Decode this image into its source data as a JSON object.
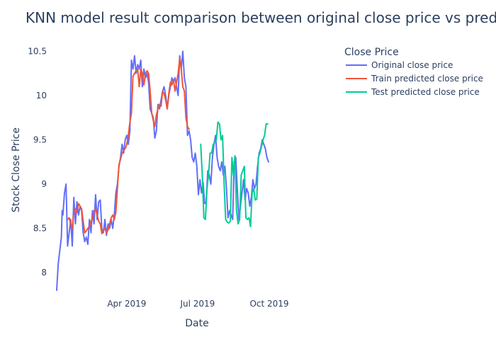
{
  "chart_data": {
    "type": "line",
    "title": "KNN model result comparison between original close price vs predicted close price",
    "xlabel": "Date",
    "ylabel": "Stock Close Price",
    "x_range": [
      "2019-01-01",
      "2019-12-31"
    ],
    "x_ticks": [
      {
        "date": "2019-04-01",
        "label": "Apr 2019"
      },
      {
        "date": "2019-07-01",
        "label": "Jul 2019"
      },
      {
        "date": "2019-10-01",
        "label": "Oct 2019"
      }
    ],
    "ylim": [
      7.8,
      10.6
    ],
    "y_ticks": [
      {
        "value": 8,
        "label": "8"
      },
      {
        "value": 8.5,
        "label": "8.5"
      },
      {
        "value": 9,
        "label": "9"
      },
      {
        "value": 9.5,
        "label": "9.5"
      },
      {
        "value": 10,
        "label": "10"
      },
      {
        "value": 10.5,
        "label": "10.5"
      }
    ],
    "grid": false,
    "legend": {
      "title": "Close Price",
      "placement": "top-right"
    },
    "series": [
      {
        "name": "Original close price",
        "color": "#636efa",
        "points": [
          [
            "2019-01-01",
            7.8
          ],
          [
            "2019-01-03",
            8.1
          ],
          [
            "2019-01-05",
            8.25
          ],
          [
            "2019-01-07",
            8.4
          ],
          [
            "2019-01-08",
            8.7
          ],
          [
            "2019-01-09",
            8.65
          ],
          [
            "2019-01-11",
            8.9
          ],
          [
            "2019-01-13",
            9.0
          ],
          [
            "2019-01-15",
            8.3
          ],
          [
            "2019-01-17",
            8.45
          ],
          [
            "2019-01-19",
            8.6
          ],
          [
            "2019-01-21",
            8.3
          ],
          [
            "2019-01-23",
            8.85
          ],
          [
            "2019-01-25",
            8.55
          ],
          [
            "2019-01-27",
            8.8
          ],
          [
            "2019-01-29",
            8.65
          ],
          [
            "2019-01-31",
            8.75
          ],
          [
            "2019-02-02",
            8.7
          ],
          [
            "2019-02-04",
            8.45
          ],
          [
            "2019-02-06",
            8.35
          ],
          [
            "2019-02-08",
            8.4
          ],
          [
            "2019-02-10",
            8.32
          ],
          [
            "2019-02-12",
            8.6
          ],
          [
            "2019-02-14",
            8.45
          ],
          [
            "2019-02-16",
            8.7
          ],
          [
            "2019-02-18",
            8.55
          ],
          [
            "2019-02-20",
            8.88
          ],
          [
            "2019-02-22",
            8.6
          ],
          [
            "2019-02-24",
            8.8
          ],
          [
            "2019-02-26",
            8.82
          ],
          [
            "2019-02-28",
            8.5
          ],
          [
            "2019-03-02",
            8.45
          ],
          [
            "2019-03-04",
            8.6
          ],
          [
            "2019-03-06",
            8.42
          ],
          [
            "2019-03-08",
            8.55
          ],
          [
            "2019-03-10",
            8.5
          ],
          [
            "2019-03-12",
            8.6
          ],
          [
            "2019-03-14",
            8.5
          ],
          [
            "2019-03-16",
            8.65
          ],
          [
            "2019-03-18",
            8.9
          ],
          [
            "2019-03-20",
            9.0
          ],
          [
            "2019-03-22",
            9.2
          ],
          [
            "2019-03-24",
            9.3
          ],
          [
            "2019-03-26",
            9.45
          ],
          [
            "2019-03-28",
            9.35
          ],
          [
            "2019-03-30",
            9.5
          ],
          [
            "2019-04-01",
            9.55
          ],
          [
            "2019-04-03",
            9.45
          ],
          [
            "2019-04-05",
            9.6
          ],
          [
            "2019-04-07",
            10.4
          ],
          [
            "2019-04-09",
            10.3
          ],
          [
            "2019-04-11",
            10.45
          ],
          [
            "2019-04-13",
            10.25
          ],
          [
            "2019-04-15",
            10.35
          ],
          [
            "2019-04-17",
            10.3
          ],
          [
            "2019-04-19",
            10.4
          ],
          [
            "2019-04-21",
            10.1
          ],
          [
            "2019-04-23",
            10.3
          ],
          [
            "2019-04-25",
            10.2
          ],
          [
            "2019-04-27",
            10.25
          ],
          [
            "2019-04-29",
            10.15
          ],
          [
            "2019-05-01",
            9.85
          ],
          [
            "2019-05-03",
            9.8
          ],
          [
            "2019-05-05",
            9.75
          ],
          [
            "2019-05-07",
            9.52
          ],
          [
            "2019-05-09",
            9.6
          ],
          [
            "2019-05-11",
            9.9
          ],
          [
            "2019-05-13",
            9.85
          ],
          [
            "2019-05-15",
            9.95
          ],
          [
            "2019-05-17",
            10.05
          ],
          [
            "2019-05-19",
            10.1
          ],
          [
            "2019-05-21",
            10.0
          ],
          [
            "2019-05-23",
            9.85
          ],
          [
            "2019-05-25",
            10.0
          ],
          [
            "2019-05-27",
            10.1
          ],
          [
            "2019-05-29",
            10.2
          ],
          [
            "2019-05-31",
            10.15
          ],
          [
            "2019-06-02",
            10.2
          ],
          [
            "2019-06-04",
            10.1
          ],
          [
            "2019-06-06",
            10.0
          ],
          [
            "2019-06-08",
            10.45
          ],
          [
            "2019-06-10",
            10.3
          ],
          [
            "2019-06-12",
            10.5
          ],
          [
            "2019-06-14",
            10.2
          ],
          [
            "2019-06-16",
            10.1
          ],
          [
            "2019-06-18",
            9.55
          ],
          [
            "2019-06-20",
            9.6
          ],
          [
            "2019-06-22",
            9.5
          ],
          [
            "2019-06-24",
            9.3
          ],
          [
            "2019-06-26",
            9.25
          ],
          [
            "2019-06-28",
            9.35
          ],
          [
            "2019-06-30",
            9.2
          ],
          [
            "2019-07-02",
            8.88
          ],
          [
            "2019-07-04",
            9.05
          ],
          [
            "2019-07-06",
            8.9
          ],
          [
            "2019-07-08",
            9.02
          ],
          [
            "2019-07-10",
            8.78
          ],
          [
            "2019-07-12",
            8.8
          ],
          [
            "2019-07-14",
            9.15
          ],
          [
            "2019-07-16",
            9.1
          ],
          [
            "2019-07-18",
            9.0
          ],
          [
            "2019-07-20",
            9.3
          ],
          [
            "2019-07-22",
            9.45
          ],
          [
            "2019-07-24",
            9.55
          ],
          [
            "2019-07-26",
            9.3
          ],
          [
            "2019-07-28",
            9.2
          ],
          [
            "2019-07-30",
            9.15
          ],
          [
            "2019-08-01",
            9.25
          ],
          [
            "2019-08-03",
            9.1
          ],
          [
            "2019-08-05",
            9.2
          ],
          [
            "2019-08-07",
            8.95
          ],
          [
            "2019-08-09",
            8.62
          ],
          [
            "2019-08-11",
            8.7
          ],
          [
            "2019-08-13",
            8.65
          ],
          [
            "2019-08-15",
            8.6
          ],
          [
            "2019-08-17",
            9.25
          ],
          [
            "2019-08-19",
            9.3
          ],
          [
            "2019-08-21",
            8.95
          ],
          [
            "2019-08-23",
            8.6
          ],
          [
            "2019-08-25",
            8.75
          ],
          [
            "2019-08-27",
            8.9
          ],
          [
            "2019-08-29",
            9.05
          ],
          [
            "2019-08-31",
            8.82
          ],
          [
            "2019-09-02",
            8.95
          ],
          [
            "2019-09-04",
            8.9
          ],
          [
            "2019-09-06",
            8.75
          ],
          [
            "2019-09-08",
            8.85
          ],
          [
            "2019-09-10",
            9.05
          ],
          [
            "2019-09-12",
            8.95
          ],
          [
            "2019-09-14",
            9.0
          ],
          [
            "2019-09-16",
            9.2
          ],
          [
            "2019-09-18",
            9.35
          ],
          [
            "2019-09-20",
            9.4
          ],
          [
            "2019-09-22",
            9.5
          ],
          [
            "2019-09-24",
            9.45
          ],
          [
            "2019-09-26",
            9.4
          ],
          [
            "2019-09-28",
            9.3
          ],
          [
            "2019-09-30",
            9.25
          ]
        ]
      },
      {
        "name": "Train predicted close price",
        "color": "#ef553b",
        "points": [
          [
            "2019-01-15",
            8.6
          ],
          [
            "2019-01-17",
            8.62
          ],
          [
            "2019-01-19",
            8.55
          ],
          [
            "2019-01-21",
            8.5
          ],
          [
            "2019-01-23",
            8.7
          ],
          [
            "2019-01-25",
            8.72
          ],
          [
            "2019-01-27",
            8.68
          ],
          [
            "2019-01-29",
            8.78
          ],
          [
            "2019-01-31",
            8.75
          ],
          [
            "2019-02-02",
            8.72
          ],
          [
            "2019-02-04",
            8.58
          ],
          [
            "2019-02-06",
            8.45
          ],
          [
            "2019-02-08",
            8.47
          ],
          [
            "2019-02-10",
            8.5
          ],
          [
            "2019-02-12",
            8.52
          ],
          [
            "2019-02-14",
            8.58
          ],
          [
            "2019-02-16",
            8.6
          ],
          [
            "2019-02-18",
            8.7
          ],
          [
            "2019-02-20",
            8.72
          ],
          [
            "2019-02-22",
            8.65
          ],
          [
            "2019-02-24",
            8.58
          ],
          [
            "2019-02-26",
            8.55
          ],
          [
            "2019-02-28",
            8.44
          ],
          [
            "2019-03-02",
            8.48
          ],
          [
            "2019-03-04",
            8.5
          ],
          [
            "2019-03-06",
            8.45
          ],
          [
            "2019-03-08",
            8.48
          ],
          [
            "2019-03-10",
            8.55
          ],
          [
            "2019-03-12",
            8.62
          ],
          [
            "2019-03-14",
            8.65
          ],
          [
            "2019-03-16",
            8.6
          ],
          [
            "2019-03-18",
            8.68
          ],
          [
            "2019-03-20",
            8.95
          ],
          [
            "2019-03-22",
            9.22
          ],
          [
            "2019-03-24",
            9.28
          ],
          [
            "2019-03-26",
            9.35
          ],
          [
            "2019-03-28",
            9.38
          ],
          [
            "2019-03-30",
            9.4
          ],
          [
            "2019-04-01",
            9.45
          ],
          [
            "2019-04-03",
            9.55
          ],
          [
            "2019-04-05",
            9.7
          ],
          [
            "2019-04-07",
            9.8
          ],
          [
            "2019-04-09",
            10.22
          ],
          [
            "2019-04-11",
            10.25
          ],
          [
            "2019-04-13",
            10.28
          ],
          [
            "2019-04-15",
            10.3
          ],
          [
            "2019-04-17",
            10.1
          ],
          [
            "2019-04-19",
            10.3
          ],
          [
            "2019-04-21",
            10.25
          ],
          [
            "2019-04-23",
            10.12
          ],
          [
            "2019-04-25",
            10.25
          ],
          [
            "2019-04-27",
            10.28
          ],
          [
            "2019-04-29",
            10.25
          ],
          [
            "2019-05-01",
            10.05
          ],
          [
            "2019-05-03",
            9.8
          ],
          [
            "2019-05-05",
            9.72
          ],
          [
            "2019-05-07",
            9.65
          ],
          [
            "2019-05-09",
            9.78
          ],
          [
            "2019-05-11",
            9.85
          ],
          [
            "2019-05-13",
            9.9
          ],
          [
            "2019-05-15",
            9.88
          ],
          [
            "2019-05-17",
            10.05
          ],
          [
            "2019-05-19",
            10.02
          ],
          [
            "2019-05-21",
            9.95
          ],
          [
            "2019-05-23",
            9.85
          ],
          [
            "2019-05-25",
            10.02
          ],
          [
            "2019-05-27",
            10.15
          ],
          [
            "2019-05-29",
            10.12
          ],
          [
            "2019-05-31",
            10.18
          ],
          [
            "2019-06-02",
            10.05
          ],
          [
            "2019-06-04",
            10.15
          ],
          [
            "2019-06-06",
            10.25
          ],
          [
            "2019-06-08",
            10.42
          ],
          [
            "2019-06-10",
            10.3
          ],
          [
            "2019-06-12",
            10.1
          ],
          [
            "2019-06-14",
            10.05
          ],
          [
            "2019-06-16",
            9.75
          ],
          [
            "2019-06-18",
            9.65
          ],
          [
            "2019-06-20",
            9.62
          ]
        ]
      },
      {
        "name": "Test predicted close price",
        "color": "#00cc96",
        "points": [
          [
            "2019-07-05",
            9.45
          ],
          [
            "2019-07-07",
            9.1
          ],
          [
            "2019-07-09",
            8.62
          ],
          [
            "2019-07-11",
            8.6
          ],
          [
            "2019-07-13",
            8.95
          ],
          [
            "2019-07-15",
            9.1
          ],
          [
            "2019-07-17",
            9.35
          ],
          [
            "2019-07-19",
            9.35
          ],
          [
            "2019-07-21",
            9.45
          ],
          [
            "2019-07-23",
            9.47
          ],
          [
            "2019-07-25",
            9.5
          ],
          [
            "2019-07-27",
            9.7
          ],
          [
            "2019-07-29",
            9.68
          ],
          [
            "2019-07-31",
            9.5
          ],
          [
            "2019-08-02",
            9.55
          ],
          [
            "2019-08-04",
            9.0
          ],
          [
            "2019-08-06",
            8.6
          ],
          [
            "2019-08-08",
            8.57
          ],
          [
            "2019-08-10",
            8.56
          ],
          [
            "2019-08-12",
            8.58
          ],
          [
            "2019-08-14",
            9.3
          ],
          [
            "2019-08-16",
            9.1
          ],
          [
            "2019-08-18",
            9.32
          ],
          [
            "2019-08-20",
            8.7
          ],
          [
            "2019-08-22",
            8.55
          ],
          [
            "2019-08-24",
            8.6
          ],
          [
            "2019-08-26",
            9.1
          ],
          [
            "2019-08-28",
            9.15
          ],
          [
            "2019-08-30",
            9.2
          ],
          [
            "2019-09-01",
            8.62
          ],
          [
            "2019-09-03",
            8.6
          ],
          [
            "2019-09-05",
            8.62
          ],
          [
            "2019-09-07",
            8.52
          ],
          [
            "2019-09-09",
            8.9
          ],
          [
            "2019-09-11",
            8.95
          ],
          [
            "2019-09-13",
            8.82
          ],
          [
            "2019-09-15",
            8.83
          ],
          [
            "2019-09-17",
            9.3
          ],
          [
            "2019-09-19",
            9.35
          ],
          [
            "2019-09-21",
            9.42
          ],
          [
            "2019-09-23",
            9.5
          ],
          [
            "2019-09-25",
            9.55
          ],
          [
            "2019-09-27",
            9.68
          ],
          [
            "2019-09-29",
            9.68
          ]
        ]
      }
    ]
  }
}
